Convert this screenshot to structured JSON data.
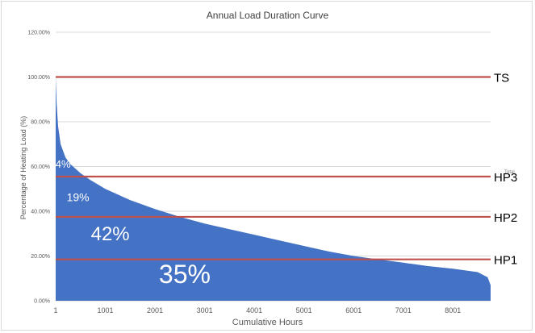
{
  "chart_data": {
    "type": "area",
    "title": "Annual Load Duration Curve",
    "xlabel": "Cumulative Hours",
    "ylabel": "Percentage of Heating Load (%)",
    "xlim": [
      1,
      8760
    ],
    "ylim": [
      0,
      120
    ],
    "x_ticks": [
      "1",
      "1001",
      "2001",
      "3001",
      "4001",
      "5001",
      "6001",
      "7001",
      "8001"
    ],
    "y_ticks": [
      "0.00%",
      "20.00%",
      "40.00%",
      "60.00%",
      "80.00%",
      "100.00%",
      "120.00%"
    ],
    "grid": true,
    "fill_color": "#4472c4",
    "line_color": "#c0504d",
    "curve": {
      "x": [
        1,
        20,
        50,
        100,
        200,
        300,
        400,
        500,
        700,
        1000,
        1500,
        2000,
        2500,
        3000,
        3500,
        4000,
        4500,
        5000,
        5500,
        6000,
        6500,
        7000,
        7500,
        8000,
        8500,
        8700,
        8760
      ],
      "y": [
        100,
        88,
        78,
        70,
        64,
        61,
        59,
        57,
        54,
        50,
        45,
        41,
        37.5,
        34.5,
        32,
        29.5,
        27,
        24.5,
        22,
        20,
        18.5,
        17,
        15.5,
        14.3,
        12.8,
        10.5,
        7
      ]
    },
    "horizontal_lines": [
      {
        "label": "TS",
        "y": 100
      },
      {
        "label": "HP3",
        "y": 55.5
      },
      {
        "label": "HP2",
        "y": 37.5
      },
      {
        "label": "HP1",
        "y": 18.5
      }
    ],
    "stage_labels": [
      {
        "text": "4%",
        "x": 150,
        "y": 59.5
      },
      {
        "text": "19%",
        "x": 450,
        "y": 44.5
      },
      {
        "text": "42%",
        "x": 1100,
        "y": 27
      },
      {
        "text": "35%",
        "x": 2600,
        "y": 8
      }
    ],
    "annotation": "Total"
  }
}
